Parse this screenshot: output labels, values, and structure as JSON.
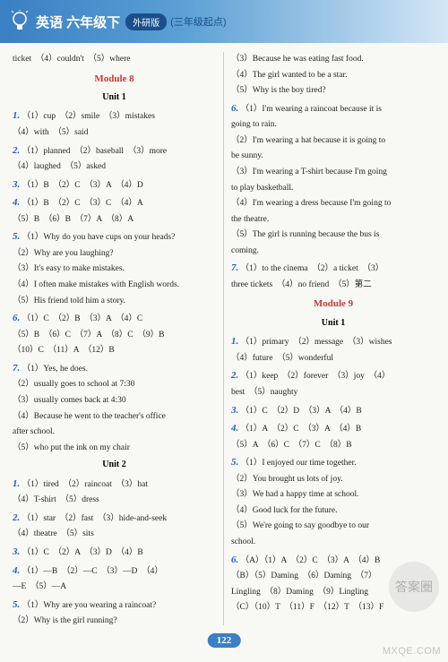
{
  "header": {
    "title_main": "英语 六年级下",
    "pill": "外研版",
    "suffix": "(三年级起点)"
  },
  "page_number": "122",
  "watermark_circle": "答案圈",
  "watermark_url": "MXQE.COM",
  "left": [
    {
      "t": "line",
      "v": "ticket　（4）couldn't　（5）where"
    },
    {
      "t": "module",
      "v": "Module 8"
    },
    {
      "t": "unit",
      "v": "Unit 1"
    },
    {
      "t": "num",
      "n": "1.",
      "v": "（1）cup　（2）smile　（3）mistakes"
    },
    {
      "t": "cont",
      "v": "（4）with　（5）said"
    },
    {
      "t": "num",
      "n": "2.",
      "v": "（1）planned　（2）baseball　（3）more"
    },
    {
      "t": "cont",
      "v": "（4）laughed　（5）asked"
    },
    {
      "t": "num",
      "n": "3.",
      "v": "（1）B　（2）C　（3）A　（4）D"
    },
    {
      "t": "num",
      "n": "4.",
      "v": "（1）B　（2）C　（3）C　（4）A"
    },
    {
      "t": "cont",
      "v": "（5）B　（6）B　（7）A　（8）A"
    },
    {
      "t": "num",
      "n": "5.",
      "v": "（1）Why do you have cups on your heads?"
    },
    {
      "t": "cont",
      "v": "（2）Why are you laughing?"
    },
    {
      "t": "cont",
      "v": "（3）It's easy to make mistakes."
    },
    {
      "t": "cont",
      "v": "（4）I often make mistakes with English words."
    },
    {
      "t": "cont",
      "v": "（5）His friend told him a story."
    },
    {
      "t": "num",
      "n": "6.",
      "v": "（1）C　（2）B　（3）A　（4）C"
    },
    {
      "t": "cont",
      "v": "（5）B　（6）C　（7）A　（8）C　（9）B"
    },
    {
      "t": "cont",
      "v": "（10）C　（11）A　（12）B"
    },
    {
      "t": "num",
      "n": "7.",
      "v": "（1）Yes, he does."
    },
    {
      "t": "cont",
      "v": "（2）usually goes to school at 7:30"
    },
    {
      "t": "cont",
      "v": "（3）usually comes back at 4:30"
    },
    {
      "t": "cont",
      "v": "（4）Because he went to the teacher's office"
    },
    {
      "t": "cont",
      "v": "after school."
    },
    {
      "t": "cont",
      "v": "（5）who put the ink on my chair"
    },
    {
      "t": "unit",
      "v": "Unit 2"
    },
    {
      "t": "num",
      "n": "1.",
      "v": "（1）tired　（2）raincoat　（3）hat"
    },
    {
      "t": "cont",
      "v": "（4）T-shirt　（5）dress"
    },
    {
      "t": "num",
      "n": "2.",
      "v": "（1）star　（2）fast　（3）hide-and-seek"
    },
    {
      "t": "cont",
      "v": "（4）theatre　（5）sits"
    },
    {
      "t": "num",
      "n": "3.",
      "v": "（1）C　（2）A　（3）D　（4）B"
    },
    {
      "t": "num",
      "n": "4.",
      "v": "（1）—B　（2）—C　（3）—D　（4）"
    },
    {
      "t": "cont",
      "v": "—E　（5）—A"
    },
    {
      "t": "num",
      "n": "5.",
      "v": "（1）Why are you wearing a raincoat?"
    },
    {
      "t": "cont",
      "v": "（2）Why is the girl running?"
    }
  ],
  "right": [
    {
      "t": "cont",
      "v": "（3）Because he was eating fast food."
    },
    {
      "t": "cont",
      "v": "（4）The girl wanted to be a star."
    },
    {
      "t": "cont",
      "v": "（5）Why is the boy tired?"
    },
    {
      "t": "num",
      "n": "6.",
      "v": "（1）I'm wearing a raincoat because it is"
    },
    {
      "t": "cont",
      "v": "going to rain."
    },
    {
      "t": "cont",
      "v": "（2）I'm wearing a hat because it is going to"
    },
    {
      "t": "cont",
      "v": "be sunny."
    },
    {
      "t": "cont",
      "v": "（3）I'm wearing a T-shirt because I'm going"
    },
    {
      "t": "cont",
      "v": "to play basketball."
    },
    {
      "t": "cont",
      "v": "（4）I'm wearing a dress because I'm going to"
    },
    {
      "t": "cont",
      "v": "the theatre."
    },
    {
      "t": "cont",
      "v": "（5）The girl is running because the bus is"
    },
    {
      "t": "cont",
      "v": "coming."
    },
    {
      "t": "num",
      "n": "7.",
      "v": "（1）to the cinema　（2）a ticket　（3）"
    },
    {
      "t": "cont",
      "v": "three tickets　（4）no friend　（5）第二"
    },
    {
      "t": "module",
      "v": "Module 9"
    },
    {
      "t": "unit",
      "v": "Unit 1"
    },
    {
      "t": "num",
      "n": "1.",
      "v": "（1）primary　（2）message　（3）wishes"
    },
    {
      "t": "cont",
      "v": "（4）future　（5）wonderful"
    },
    {
      "t": "num",
      "n": "2.",
      "v": "（1）keep　（2）forever　（3）joy　（4）"
    },
    {
      "t": "cont",
      "v": "best　（5）naughty"
    },
    {
      "t": "num",
      "n": "3.",
      "v": "（1）C　（2）D　（3）A　（4）B"
    },
    {
      "t": "num",
      "n": "4.",
      "v": "（1）A　（2）C　（3）A　（4）B"
    },
    {
      "t": "cont",
      "v": "（5）A　（6）C　（7）C　（8）B"
    },
    {
      "t": "num",
      "n": "5.",
      "v": "（1）I enjoyed our time together."
    },
    {
      "t": "cont",
      "v": "（2）You brought us lots of joy."
    },
    {
      "t": "cont",
      "v": "（3）We had a happy time at school."
    },
    {
      "t": "cont",
      "v": "（4）Good luck for the future."
    },
    {
      "t": "cont",
      "v": "（5）We're going to say goodbye to our"
    },
    {
      "t": "cont",
      "v": "school."
    },
    {
      "t": "num",
      "n": "6.",
      "v": "（A）（1）A　（2）C　（3）A　（4）B"
    },
    {
      "t": "cont",
      "v": "（B）（5）Daming　（6）Daming　（7）"
    },
    {
      "t": "cont",
      "v": "Lingling　（8）Daming　（9）Lingling"
    },
    {
      "t": "cont",
      "v": "（C）（10）T　（11）F　（12）T　（13）F"
    }
  ]
}
